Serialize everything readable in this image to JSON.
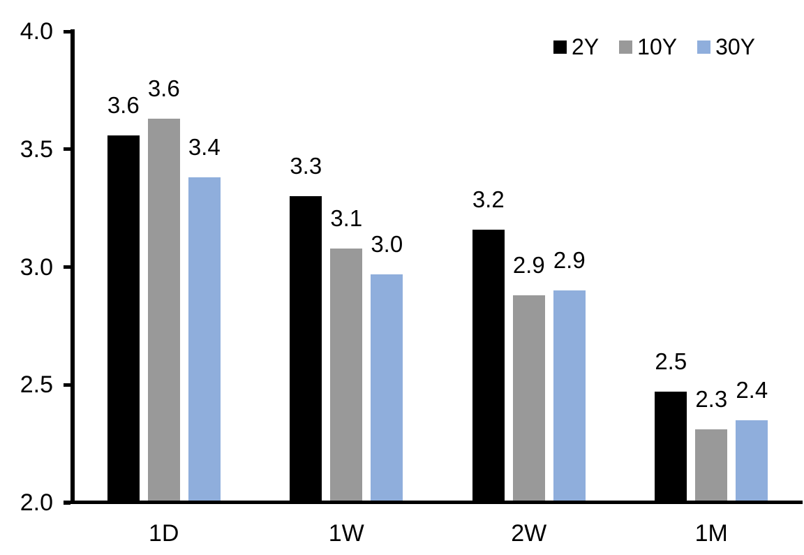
{
  "chart_data": {
    "type": "bar",
    "categories": [
      "1D",
      "1W",
      "2W",
      "1M"
    ],
    "series": [
      {
        "name": "2Y",
        "color": "#000000",
        "values": [
          3.56,
          3.3,
          3.16,
          2.47
        ],
        "labels": [
          "3.6",
          "3.3",
          "3.2",
          "2.5"
        ]
      },
      {
        "name": "10Y",
        "color": "#999999",
        "values": [
          3.63,
          3.08,
          2.88,
          2.31
        ],
        "labels": [
          "3.6",
          "3.1",
          "2.9",
          "2.3"
        ]
      },
      {
        "name": "30Y",
        "color": "#8FAEDC",
        "values": [
          3.38,
          2.97,
          2.9,
          2.35
        ],
        "labels": [
          "3.4",
          "3.0",
          "2.9",
          "2.4"
        ]
      }
    ],
    "ylim": [
      2.0,
      4.0
    ],
    "ytick_values": [
      4.0,
      3.5,
      3.0,
      2.5,
      2.0
    ],
    "ytick_labels": [
      "4.0",
      "3.5",
      "3.0",
      "2.5",
      "2.0"
    ],
    "grid": false,
    "legend_position": "top-right",
    "axis_color": "#000000",
    "background_color": "#ffffff"
  }
}
